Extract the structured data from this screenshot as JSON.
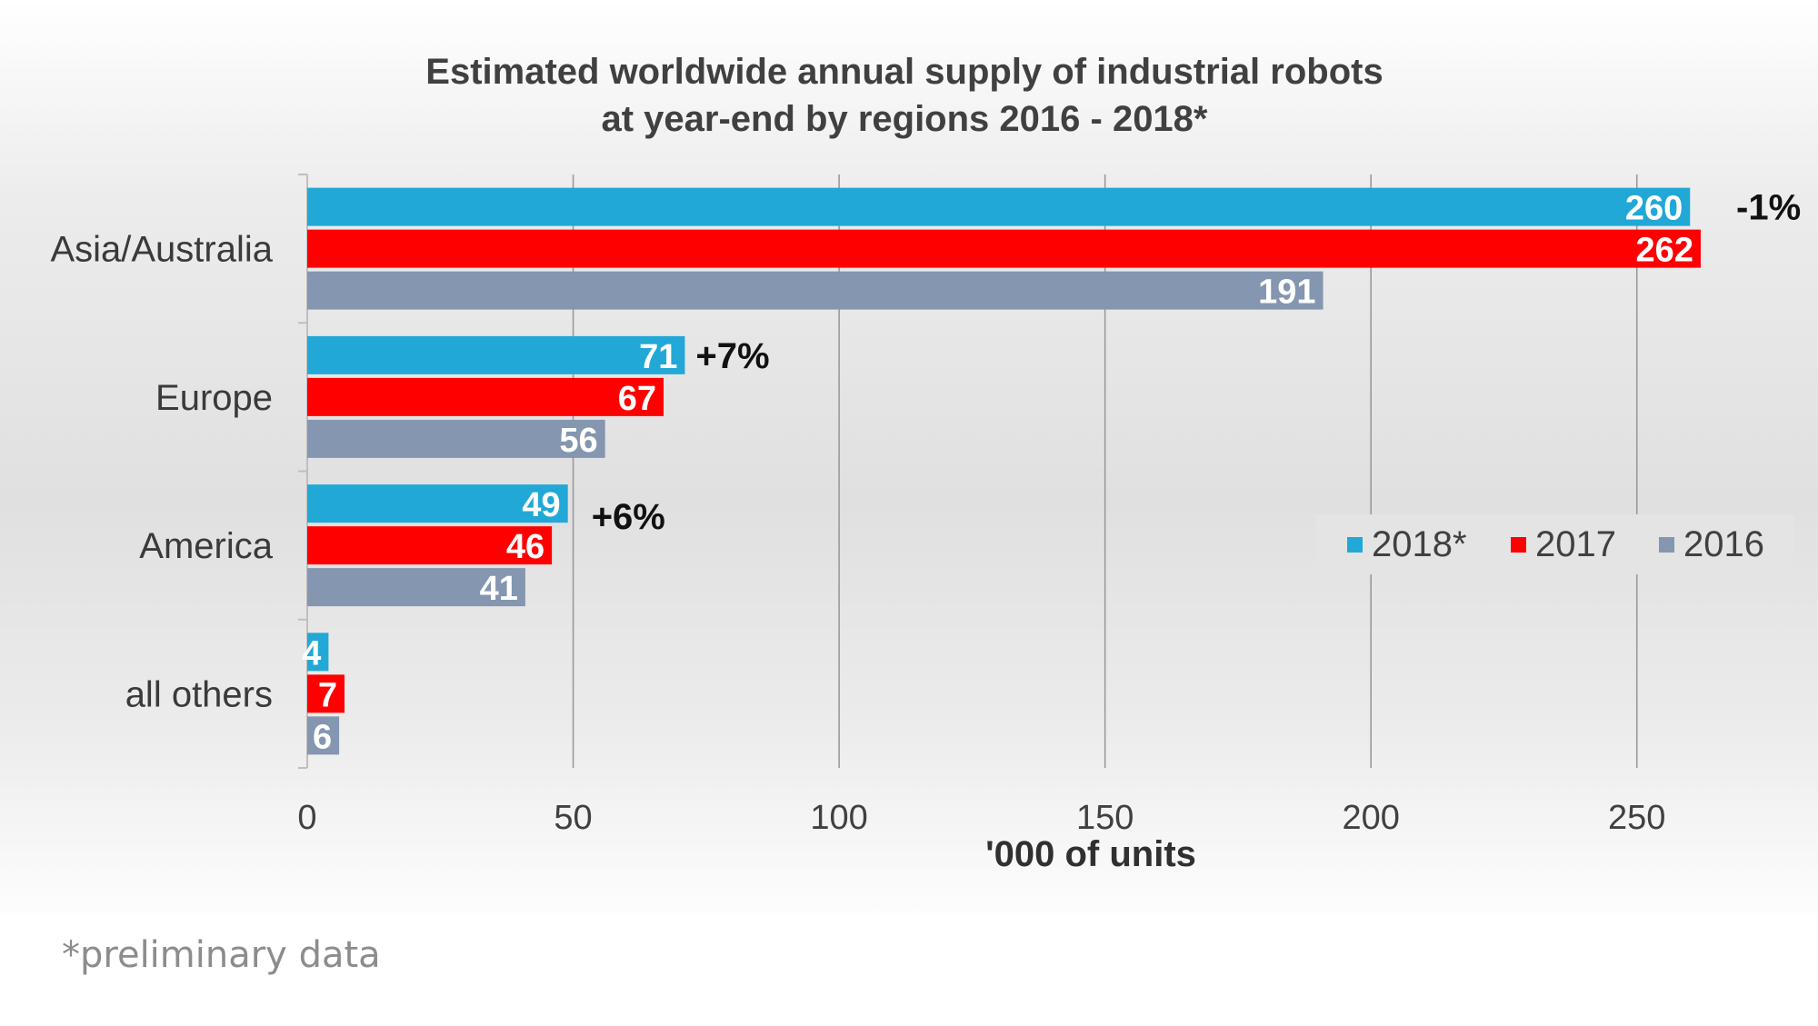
{
  "chart_data": {
    "type": "bar",
    "orientation": "horizontal",
    "title": "Estimated worldwide annual supply of industrial robots at year-end by regions 2016 - 2018*",
    "title_lines": [
      "Estimated worldwide annual supply of industrial robots",
      "at year-end by regions 2016 - 2018*"
    ],
    "categories": [
      "Asia/Australia",
      "Europe",
      "America",
      "all others"
    ],
    "series": [
      {
        "name": "2018*",
        "color": "#22a8d6",
        "values": [
          260,
          71,
          49,
          4
        ]
      },
      {
        "name": "2017",
        "color": "#ff0000",
        "values": [
          262,
          67,
          46,
          7
        ]
      },
      {
        "name": "2016",
        "color": "#8496b0",
        "values": [
          191,
          56,
          41,
          6
        ]
      }
    ],
    "growth_labels": [
      "-1%",
      "+7%",
      "+6%",
      ""
    ],
    "xlabel": "'000 of units",
    "ylabel": "",
    "xlim": [
      0,
      270
    ],
    "xticks": [
      0,
      50,
      100,
      150,
      200,
      250
    ],
    "grid": "vertical",
    "legend_position": "right",
    "data_labels": true
  },
  "footnote": "*preliminary data"
}
